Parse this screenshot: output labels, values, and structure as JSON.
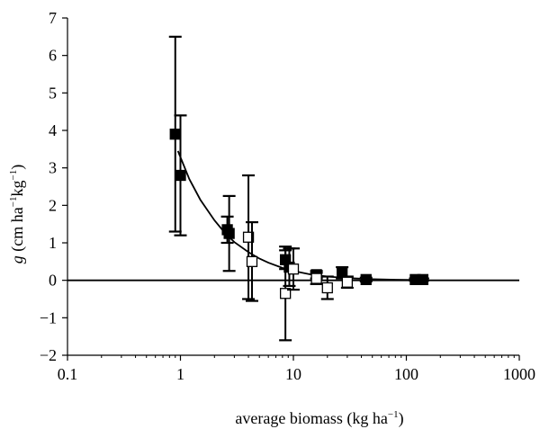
{
  "chart_data": {
    "type": "scatter",
    "title": "",
    "xlabel": "average biomass (kg ha",
    "xlabel_sup": "−1",
    "xlabel_tail": ")",
    "ylabel_var": "g",
    "ylabel_units": " (cm ha",
    "ylabel_sup1": "−1",
    "ylabel_mid": "kg",
    "ylabel_sup2": "−1",
    "ylabel_tail": ")",
    "x_scale": "log",
    "xlim": [
      0.1,
      1000
    ],
    "ylim": [
      -2,
      7
    ],
    "xticks": [
      0.1,
      1,
      10,
      100,
      1000
    ],
    "xtick_labels": [
      "0.1",
      "1",
      "10",
      "100",
      "1000"
    ],
    "yticks": [
      -2,
      -1,
      0,
      1,
      2,
      3,
      4,
      5,
      6,
      7
    ],
    "ytick_labels": [
      "−2",
      "−1",
      "0",
      "1",
      "2",
      "3",
      "4",
      "5",
      "6",
      "7"
    ],
    "grid": false,
    "legend": "none",
    "zero_line": true,
    "colors": {
      "filled_marker": "#000000",
      "open_marker_fill": "#ffffff",
      "line": "#000000"
    },
    "series": [
      {
        "marker": "filled-square",
        "points": [
          {
            "x": 0.9,
            "y": 3.9,
            "err": 2.6
          },
          {
            "x": 1.0,
            "y": 2.8,
            "err": 1.6
          },
          {
            "x": 2.6,
            "y": 1.35,
            "err": 0.35
          },
          {
            "x": 2.7,
            "y": 1.25,
            "err": 1.0
          },
          {
            "x": 8.5,
            "y": 0.55,
            "err": 0.25
          },
          {
            "x": 9.2,
            "y": 0.35,
            "err": 0.5
          },
          {
            "x": 16,
            "y": 0.15,
            "err": 0.1
          },
          {
            "x": 27,
            "y": 0.2,
            "err": 0.15
          },
          {
            "x": 44,
            "y": 0.02,
            "err": 0.05
          },
          {
            "x": 120,
            "y": 0.02,
            "err": 0.03
          },
          {
            "x": 140,
            "y": 0.02,
            "err": 0.03
          }
        ]
      },
      {
        "marker": "open-square",
        "points": [
          {
            "x": 4.0,
            "y": 1.15,
            "err": 1.65
          },
          {
            "x": 4.3,
            "y": 0.5,
            "err": 1.05
          },
          {
            "x": 8.5,
            "y": -0.35,
            "err": 1.25
          },
          {
            "x": 10,
            "y": 0.3,
            "err": 0.55
          },
          {
            "x": 16,
            "y": 0.05,
            "err": 0.15
          },
          {
            "x": 20,
            "y": -0.2,
            "err": 0.3
          },
          {
            "x": 30,
            "y": -0.05,
            "err": 0.15
          }
        ]
      }
    ],
    "fit_curve": {
      "x": [
        0.95,
        1.2,
        1.5,
        2,
        2.5,
        3,
        4,
        5,
        6,
        8,
        10,
        14,
        20,
        30,
        50,
        80,
        120,
        150
      ],
      "y": [
        3.45,
        2.7,
        2.15,
        1.6,
        1.25,
        1.02,
        0.75,
        0.58,
        0.47,
        0.33,
        0.25,
        0.16,
        0.1,
        0.06,
        0.03,
        0.015,
        0.01,
        0.008
      ]
    }
  }
}
